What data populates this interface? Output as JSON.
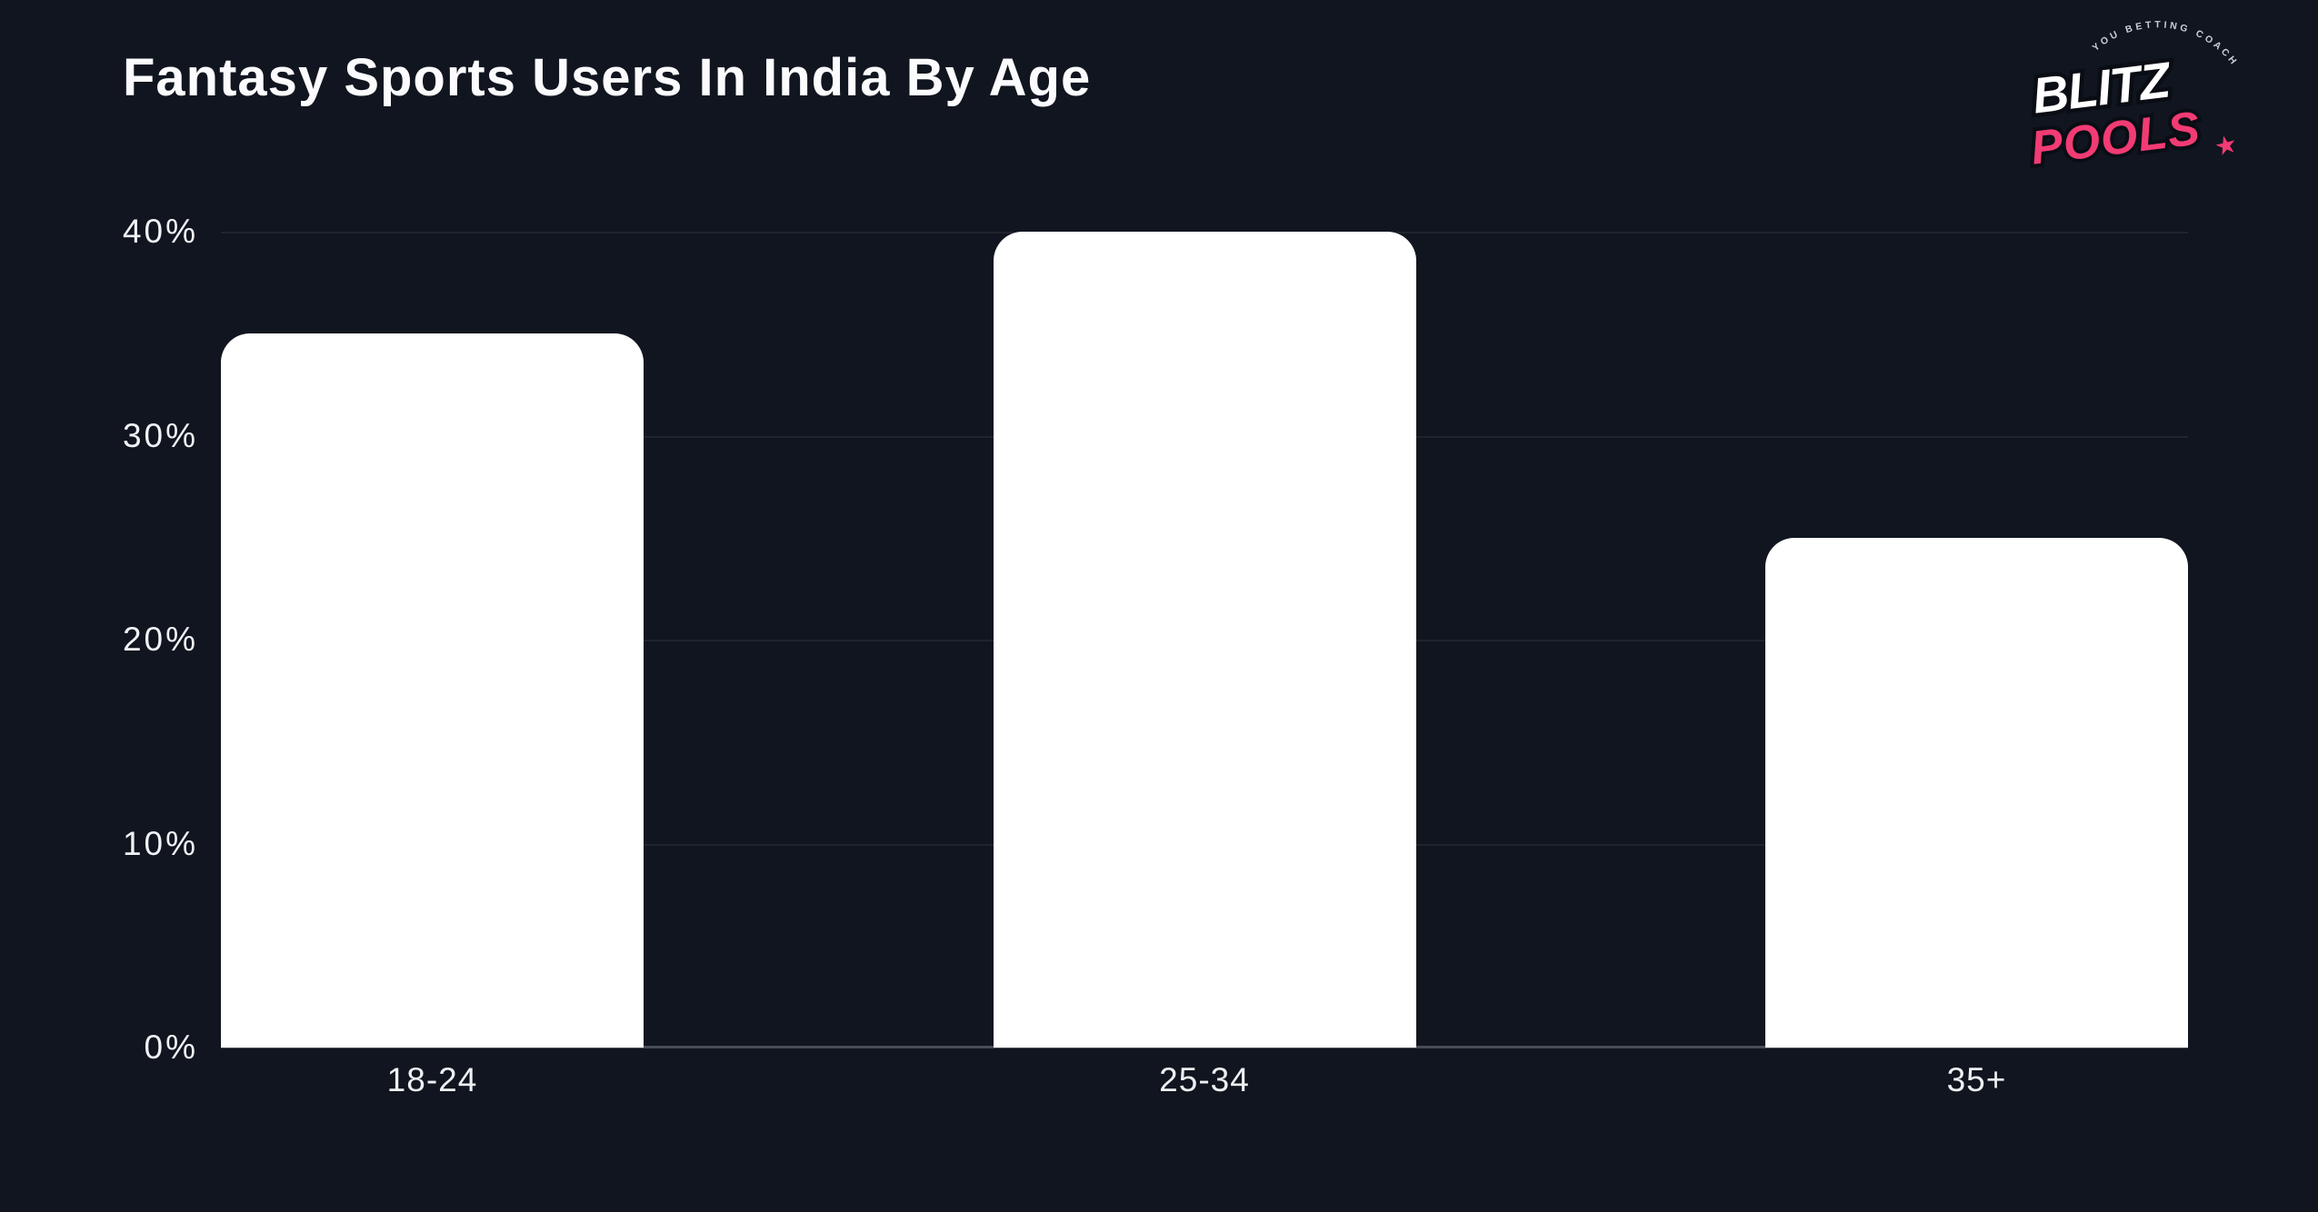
{
  "header": {
    "title": "Fantasy Sports Users In India By Age"
  },
  "logo": {
    "line1": "BLITZ",
    "line2": "POOLS",
    "tagline": "YOU BETTING COACH",
    "star": "★",
    "pink": "#f23b74",
    "white": "#ffffff"
  },
  "chart_data": {
    "type": "bar",
    "title": "Fantasy Sports Users In India By Age",
    "categories": [
      "18-24",
      "25-34",
      "35+"
    ],
    "values": [
      35,
      40,
      25
    ],
    "xlabel": "",
    "ylabel": "",
    "ylim": [
      0,
      40
    ],
    "yticks": [
      0,
      10,
      20,
      30,
      40
    ],
    "ytick_labels": [
      "0%",
      "10%",
      "20%",
      "30%",
      "40%"
    ],
    "grid": true,
    "legend": false,
    "bar_color": "#ffffff",
    "background": "#10151f"
  }
}
